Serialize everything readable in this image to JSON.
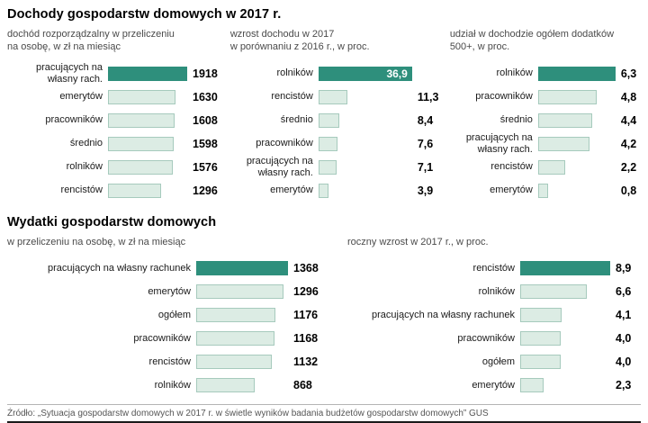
{
  "page": {
    "title1": "Dochody  gospodarstw domowych w 2017 r.",
    "title2": "Wydatki gospodarstw domowych",
    "source": "Źródło: „Sytuacja gospodarstw domowych w 2017 r. w świetle wyników badania budżetów gospodarstw domowych” GUS"
  },
  "colors": {
    "bar_highlight": "#2e8f7c",
    "bar_light_fill": "#dcece4",
    "bar_light_border": "#a6cabd"
  },
  "chart_data": [
    {
      "type": "bar",
      "orientation": "horizontal",
      "title": "dochód rozporządzalny w przeliczeniu\nna osobę, w zł na miesiąc",
      "categories": [
        "pracujących na własny rach.",
        "emerytów",
        "pracowników",
        "średnio",
        "rolników",
        "rencistów"
      ],
      "values": [
        1918,
        1630,
        1608,
        1598,
        1576,
        1296
      ],
      "value_labels": [
        "1918",
        "1630",
        "1608",
        "1598",
        "1576",
        "1296"
      ],
      "xlim": [
        0,
        1918
      ],
      "highlight_index": 0,
      "value_inside_highlight": false
    },
    {
      "type": "bar",
      "orientation": "horizontal",
      "title": "wzrost dochodu w 2017\nw porównaniu z 2016 r., w proc.",
      "categories": [
        "rolników",
        "rencistów",
        "średnio",
        "pracowników",
        "pracujących na własny rach.",
        "emerytów"
      ],
      "values": [
        36.9,
        11.3,
        8.4,
        7.6,
        7.1,
        3.9
      ],
      "value_labels": [
        "36,9",
        "11,3",
        "8,4",
        "7,6",
        "7,1",
        "3,9"
      ],
      "xlim": [
        0,
        36.9
      ],
      "highlight_index": 0,
      "value_inside_highlight": true
    },
    {
      "type": "bar",
      "orientation": "horizontal",
      "title": "udział w dochodzie ogółem dodatków\n500+, w proc.",
      "categories": [
        "rolników",
        "pracowników",
        "średnio",
        "pracujących na własny rach.",
        "rencistów",
        "emerytów"
      ],
      "values": [
        6.3,
        4.8,
        4.4,
        4.2,
        2.2,
        0.8
      ],
      "value_labels": [
        "6,3",
        "4,8",
        "4,4",
        "4,2",
        "2,2",
        "0,8"
      ],
      "xlim": [
        0,
        6.3
      ],
      "highlight_index": 0,
      "value_inside_highlight": false
    },
    {
      "type": "bar",
      "orientation": "horizontal",
      "title": "w przeliczeniu na osobę, w zł na miesiąc",
      "categories": [
        "pracujących na własny rachunek",
        "emerytów",
        "ogółem",
        "pracowników",
        "rencistów",
        "rolników"
      ],
      "values": [
        1368,
        1296,
        1176,
        1168,
        1132,
        868
      ],
      "value_labels": [
        "1368",
        "1296",
        "1176",
        "1168",
        "1132",
        "868"
      ],
      "xlim": [
        0,
        1368
      ],
      "highlight_index": 0,
      "value_inside_highlight": false
    },
    {
      "type": "bar",
      "orientation": "horizontal",
      "title": "roczny wzrost w 2017 r., w proc.",
      "categories": [
        "rencistów",
        "rolników",
        "pracujących na własny rachunek",
        "pracowników",
        "ogółem",
        "emerytów"
      ],
      "values": [
        8.9,
        6.6,
        4.1,
        4.0,
        4.0,
        2.3
      ],
      "value_labels": [
        "8,9",
        "6,6",
        "4,1",
        "4,0",
        "4,0",
        "2,3"
      ],
      "xlim": [
        0,
        8.9
      ],
      "highlight_index": 0,
      "value_inside_highlight": false
    }
  ]
}
